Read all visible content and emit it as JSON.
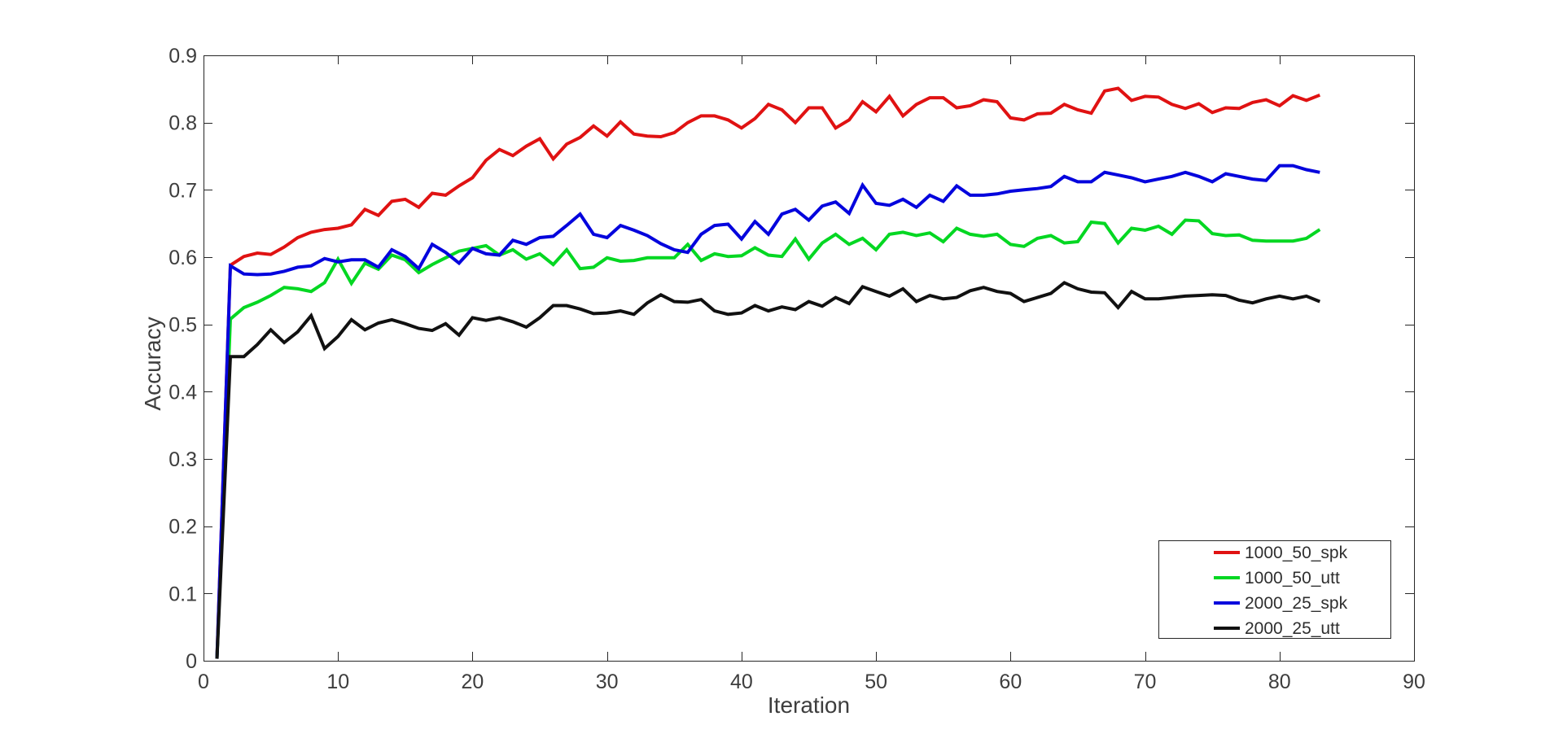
{
  "figure": {
    "background": "#ffffff",
    "axis_color": "#262626",
    "tick_label_color": "#3d3d3d"
  },
  "chart_data": {
    "type": "line",
    "title": "",
    "xlabel": "Iteration",
    "ylabel": "Accuracy",
    "xlim": [
      0,
      90
    ],
    "ylim": [
      0,
      0.9
    ],
    "xticks": [
      0,
      10,
      20,
      30,
      40,
      50,
      60,
      70,
      80,
      90
    ],
    "xtick_labels": [
      "0",
      "10",
      "20",
      "30",
      "40",
      "50",
      "60",
      "70",
      "80",
      "90"
    ],
    "yticks": [
      0,
      0.1,
      0.2,
      0.3,
      0.4,
      0.5,
      0.6,
      0.7,
      0.8,
      0.9
    ],
    "ytick_labels": [
      "0",
      "0.1",
      "0.2",
      "0.3",
      "0.4",
      "0.5",
      "0.6",
      "0.7",
      "0.8",
      "0.9"
    ],
    "grid": false,
    "legend_position": "inside lower right",
    "x": [
      1,
      2,
      3,
      4,
      5,
      6,
      7,
      8,
      9,
      10,
      11,
      12,
      13,
      14,
      15,
      16,
      17,
      18,
      19,
      20,
      21,
      22,
      23,
      24,
      25,
      26,
      27,
      28,
      29,
      30,
      31,
      32,
      33,
      34,
      35,
      36,
      37,
      38,
      39,
      40,
      41,
      42,
      43,
      44,
      45,
      46,
      47,
      48,
      49,
      50,
      51,
      52,
      53,
      54,
      55,
      56,
      57,
      58,
      59,
      60,
      61,
      62,
      63,
      64,
      65,
      66,
      67,
      68,
      69,
      70,
      71,
      72,
      73,
      74,
      75,
      76,
      77,
      78,
      79,
      80,
      81,
      82,
      83
    ],
    "series": [
      {
        "name": "1000_50_spk",
        "color": "#e01212",
        "values": [
          0.003,
          0.588,
          0.601,
          0.606,
          0.604,
          0.615,
          0.629,
          0.637,
          0.641,
          0.643,
          0.648,
          0.671,
          0.662,
          0.683,
          0.686,
          0.674,
          0.695,
          0.692,
          0.706,
          0.718,
          0.744,
          0.76,
          0.751,
          0.765,
          0.776,
          0.746,
          0.768,
          0.778,
          0.795,
          0.78,
          0.801,
          0.783,
          0.78,
          0.779,
          0.785,
          0.8,
          0.81,
          0.81,
          0.804,
          0.792,
          0.806,
          0.827,
          0.819,
          0.8,
          0.822,
          0.822,
          0.792,
          0.804,
          0.831,
          0.816,
          0.839,
          0.81,
          0.827,
          0.837,
          0.837,
          0.822,
          0.825,
          0.834,
          0.831,
          0.807,
          0.804,
          0.813,
          0.814,
          0.827,
          0.819,
          0.814,
          0.847,
          0.851,
          0.833,
          0.839,
          0.838,
          0.827,
          0.821,
          0.828,
          0.815,
          0.822,
          0.821,
          0.83,
          0.834,
          0.825,
          0.84,
          0.833,
          0.841
        ]
      },
      {
        "name": "1000_50_utt",
        "color": "#04d722",
        "values": [
          0.003,
          0.508,
          0.525,
          0.533,
          0.543,
          0.555,
          0.553,
          0.549,
          0.562,
          0.597,
          0.561,
          0.591,
          0.582,
          0.603,
          0.596,
          0.577,
          0.589,
          0.599,
          0.609,
          0.613,
          0.617,
          0.603,
          0.611,
          0.597,
          0.605,
          0.589,
          0.611,
          0.583,
          0.585,
          0.599,
          0.594,
          0.595,
          0.599,
          0.599,
          0.599,
          0.619,
          0.595,
          0.605,
          0.601,
          0.602,
          0.614,
          0.603,
          0.601,
          0.627,
          0.597,
          0.621,
          0.634,
          0.619,
          0.628,
          0.611,
          0.634,
          0.637,
          0.632,
          0.636,
          0.623,
          0.643,
          0.634,
          0.631,
          0.634,
          0.619,
          0.616,
          0.628,
          0.632,
          0.621,
          0.623,
          0.652,
          0.65,
          0.621,
          0.643,
          0.64,
          0.646,
          0.634,
          0.655,
          0.654,
          0.635,
          0.632,
          0.633,
          0.625,
          0.624,
          0.624,
          0.624,
          0.628,
          0.641
        ]
      },
      {
        "name": "2000_25_spk",
        "color": "#0404dd",
        "values": [
          0.003,
          0.587,
          0.575,
          0.574,
          0.575,
          0.579,
          0.585,
          0.587,
          0.598,
          0.593,
          0.596,
          0.596,
          0.585,
          0.611,
          0.601,
          0.583,
          0.619,
          0.607,
          0.591,
          0.613,
          0.605,
          0.603,
          0.625,
          0.619,
          0.629,
          0.631,
          0.647,
          0.664,
          0.634,
          0.629,
          0.647,
          0.64,
          0.632,
          0.62,
          0.611,
          0.607,
          0.634,
          0.647,
          0.649,
          0.627,
          0.653,
          0.634,
          0.664,
          0.671,
          0.655,
          0.676,
          0.682,
          0.665,
          0.707,
          0.68,
          0.677,
          0.686,
          0.674,
          0.692,
          0.683,
          0.706,
          0.692,
          0.692,
          0.694,
          0.698,
          0.7,
          0.702,
          0.705,
          0.72,
          0.712,
          0.712,
          0.726,
          0.722,
          0.718,
          0.712,
          0.716,
          0.72,
          0.726,
          0.72,
          0.712,
          0.724,
          0.72,
          0.716,
          0.714,
          0.736,
          0.736,
          0.73,
          0.726
        ]
      },
      {
        "name": "2000_25_utt",
        "color": "#111111",
        "values": [
          0.003,
          0.452,
          0.452,
          0.47,
          0.492,
          0.473,
          0.489,
          0.513,
          0.464,
          0.482,
          0.507,
          0.492,
          0.502,
          0.507,
          0.501,
          0.494,
          0.491,
          0.501,
          0.484,
          0.51,
          0.506,
          0.51,
          0.504,
          0.496,
          0.51,
          0.528,
          0.528,
          0.523,
          0.516,
          0.517,
          0.52,
          0.515,
          0.532,
          0.544,
          0.534,
          0.533,
          0.537,
          0.52,
          0.515,
          0.517,
          0.528,
          0.52,
          0.526,
          0.522,
          0.534,
          0.527,
          0.54,
          0.531,
          0.556,
          0.549,
          0.542,
          0.553,
          0.534,
          0.543,
          0.538,
          0.54,
          0.55,
          0.555,
          0.549,
          0.546,
          0.534,
          0.54,
          0.546,
          0.562,
          0.553,
          0.548,
          0.547,
          0.525,
          0.549,
          0.538,
          0.538,
          0.54,
          0.542,
          0.543,
          0.544,
          0.543,
          0.536,
          0.532,
          0.538,
          0.542,
          0.538,
          0.542,
          0.534
        ]
      }
    ]
  }
}
